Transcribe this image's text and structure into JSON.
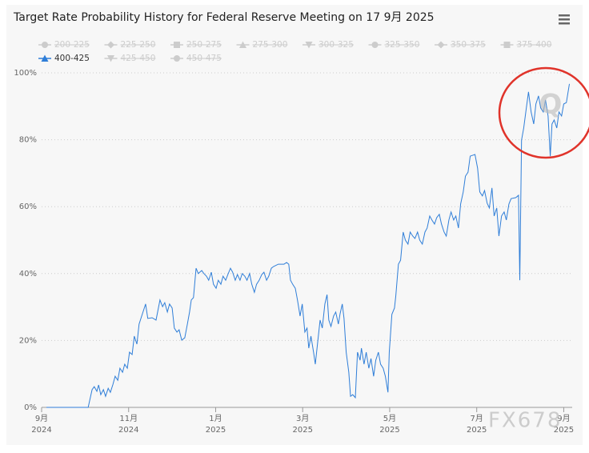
{
  "chart_data": {
    "type": "line",
    "title": "Target Rate Probability History for Federal Reserve Meeting on 17 9月 2025",
    "watermarks": [
      "Q",
      "FX678"
    ],
    "xlim": [
      0,
      12.15
    ],
    "xticks": [
      {
        "value": 0,
        "label": "9月\n2024"
      },
      {
        "value": 2,
        "label": "11月\n2024"
      },
      {
        "value": 4,
        "label": "1月\n2025"
      },
      {
        "value": 6,
        "label": "3月\n2025"
      },
      {
        "value": 8,
        "label": "5月\n2025"
      },
      {
        "value": 10,
        "label": "7月\n2025"
      },
      {
        "value": 12,
        "label": "9月\n2025"
      }
    ],
    "ylim": [
      0,
      100
    ],
    "yticks": [
      {
        "value": 0,
        "label": "0%"
      },
      {
        "value": 20,
        "label": "20%"
      },
      {
        "value": 40,
        "label": "40%"
      },
      {
        "value": 60,
        "label": "60%"
      },
      {
        "value": 80,
        "label": "80%"
      },
      {
        "value": 100,
        "label": "100%"
      }
    ],
    "grid": true,
    "x": [
      0.11,
      1.07,
      1.16,
      1.21,
      1.27,
      1.31,
      1.36,
      1.42,
      1.47,
      1.53,
      1.58,
      1.64,
      1.69,
      1.75,
      1.8,
      1.86,
      1.91,
      1.97,
      2.02,
      2.08,
      2.13,
      2.19,
      2.24,
      2.3,
      2.39,
      2.44,
      2.54,
      2.63,
      2.72,
      2.78,
      2.83,
      2.89,
      2.94,
      3.0,
      3.05,
      3.11,
      3.16,
      3.22,
      3.29,
      3.35,
      3.4,
      3.44,
      3.49,
      3.55,
      3.6,
      3.68,
      3.73,
      3.79,
      3.84,
      3.9,
      3.95,
      4.01,
      4.06,
      4.12,
      4.17,
      4.23,
      4.28,
      4.34,
      4.39,
      4.45,
      4.5,
      4.56,
      4.61,
      4.67,
      4.72,
      4.78,
      4.83,
      4.89,
      4.94,
      5.0,
      5.06,
      5.11,
      5.17,
      5.22,
      5.28,
      5.33,
      5.44,
      5.57,
      5.63,
      5.68,
      5.72,
      5.77,
      5.83,
      5.88,
      5.94,
      5.99,
      6.05,
      6.1,
      6.14,
      6.19,
      6.25,
      6.29,
      6.34,
      6.4,
      6.45,
      6.51,
      6.56,
      6.6,
      6.65,
      6.71,
      6.76,
      6.82,
      6.86,
      6.91,
      6.95,
      7.0,
      7.06,
      7.1,
      7.15,
      7.21,
      7.26,
      7.32,
      7.35,
      7.41,
      7.46,
      7.52,
      7.57,
      7.63,
      7.68,
      7.74,
      7.79,
      7.85,
      7.9,
      7.96,
      7.99,
      8.05,
      8.11,
      8.14,
      8.2,
      8.25,
      8.31,
      8.36,
      8.42,
      8.47,
      8.53,
      8.58,
      8.64,
      8.69,
      8.75,
      8.81,
      8.86,
      8.92,
      8.97,
      9.03,
      9.08,
      9.14,
      9.19,
      9.25,
      9.3,
      9.36,
      9.41,
      9.47,
      9.52,
      9.58,
      9.63,
      9.69,
      9.74,
      9.8,
      9.85,
      9.96,
      10.02,
      10.07,
      10.13,
      10.18,
      10.24,
      10.29,
      10.35,
      10.4,
      10.46,
      10.51,
      10.57,
      10.63,
      10.68,
      10.74,
      10.79,
      10.9,
      10.96,
      10.99,
      11.03,
      11.08,
      11.14,
      11.19,
      11.25,
      11.31,
      11.36,
      11.42,
      11.47,
      11.53,
      11.58,
      11.64,
      11.69,
      11.73,
      11.78,
      11.84,
      11.89,
      11.95,
      12.0,
      12.06,
      12.13
    ],
    "series": [
      {
        "name": "200-225",
        "symbol": "circle",
        "visible": false
      },
      {
        "name": "225-250",
        "symbol": "diamond",
        "visible": false
      },
      {
        "name": "250-275",
        "symbol": "square",
        "visible": false
      },
      {
        "name": "275-300",
        "symbol": "triangle",
        "visible": false
      },
      {
        "name": "300-325",
        "symbol": "triangle-down",
        "visible": false
      },
      {
        "name": "325-350",
        "symbol": "circle",
        "visible": false
      },
      {
        "name": "350-375",
        "symbol": "diamond",
        "visible": false
      },
      {
        "name": "375-400",
        "symbol": "square",
        "visible": false
      },
      {
        "name": "400-425",
        "symbol": "triangle",
        "visible": true,
        "color": "#2f7ed8",
        "values": [
          0,
          0,
          5.3,
          6.2,
          4.8,
          6.7,
          3.8,
          5.3,
          3.3,
          5.7,
          4.5,
          6.9,
          9.3,
          8.1,
          11.7,
          10.5,
          12.9,
          11.7,
          16.5,
          15.8,
          21.3,
          18.9,
          24.9,
          27.3,
          30.9,
          26.6,
          26.8,
          26.1,
          32.1,
          30.1,
          31.3,
          28.5,
          30.9,
          29.7,
          23.7,
          22.5,
          23.2,
          20.1,
          20.8,
          24.9,
          28.5,
          32.1,
          32.8,
          41.6,
          40.0,
          40.9,
          40.0,
          39.2,
          38.0,
          40.4,
          36.8,
          35.6,
          38.0,
          36.8,
          39.2,
          38.0,
          39.7,
          41.6,
          40.4,
          38.0,
          39.7,
          38.0,
          40.0,
          39.2,
          38.0,
          40.0,
          36.8,
          34.4,
          36.8,
          38.0,
          39.7,
          40.4,
          38.0,
          39.2,
          41.6,
          42.1,
          42.8,
          42.8,
          43.3,
          42.8,
          38.0,
          36.8,
          35.6,
          32.1,
          27.3,
          30.9,
          22.5,
          23.7,
          17.7,
          21.3,
          16.5,
          12.9,
          18.9,
          26.1,
          23.7,
          30.9,
          33.7,
          26.1,
          24.2,
          27.3,
          28.5,
          24.9,
          28.0,
          30.9,
          26.6,
          16.5,
          10.5,
          3.3,
          3.8,
          2.9,
          16.5,
          14.1,
          17.7,
          12.9,
          16.5,
          11.7,
          14.6,
          9.3,
          14.1,
          16.5,
          12.9,
          11.7,
          9.3,
          4.5,
          16.5,
          27.8,
          29.7,
          33.3,
          42.8,
          44.0,
          52.4,
          50.0,
          48.8,
          52.4,
          51.2,
          50.5,
          52.4,
          50.0,
          48.8,
          52.4,
          53.6,
          57.2,
          56.0,
          54.8,
          56.7,
          57.7,
          54.8,
          52.4,
          51.2,
          56.0,
          58.4,
          56.0,
          57.2,
          53.6,
          60.8,
          64.4,
          69.1,
          70.3,
          75.1,
          75.6,
          71.5,
          64.4,
          63.2,
          64.8,
          61.0,
          59.6,
          65.6,
          57.2,
          59.6,
          51.2,
          57.2,
          58.4,
          56.0,
          60.8,
          62.4,
          62.7,
          63.4,
          38.0,
          79.9,
          83.5,
          89.5,
          94.3,
          88.3,
          84.7,
          90.7,
          93.1,
          89.5,
          88.3,
          91.9,
          87.1,
          75.1,
          84.7,
          85.9,
          83.5,
          88.3,
          87.1,
          90.7,
          91.1,
          96.7
        ]
      },
      {
        "name": "425-450",
        "symbol": "triangle-down",
        "visible": false
      },
      {
        "name": "450-475",
        "symbol": "circle",
        "visible": false
      }
    ]
  }
}
